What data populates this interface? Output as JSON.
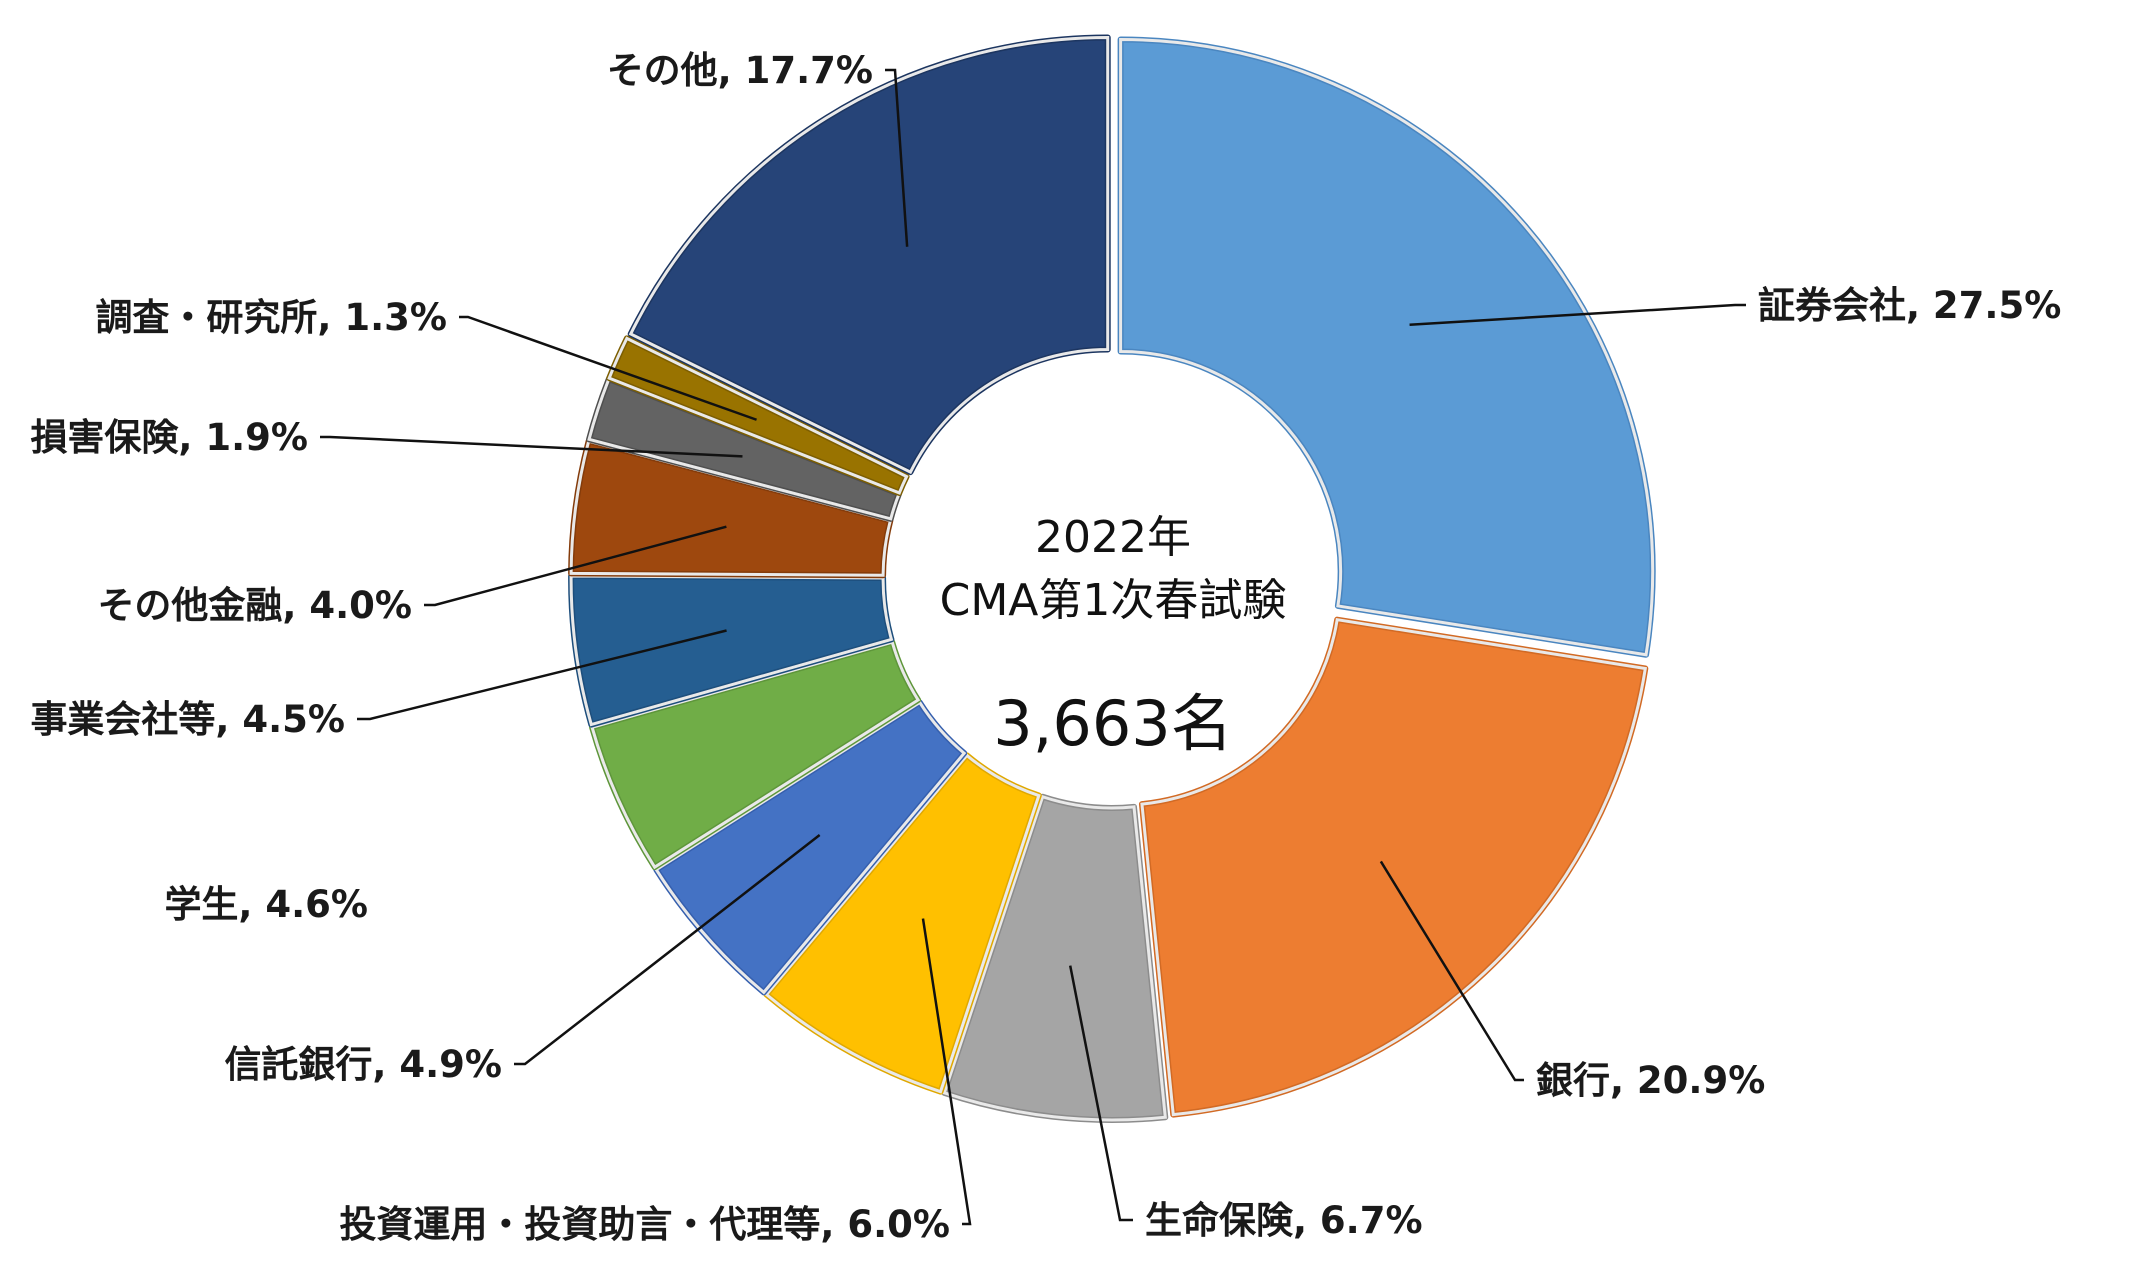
{
  "chart_data": {
    "type": "donut",
    "center": {
      "line1": "2022年",
      "line2": "CMA第1次春試験",
      "total": "3,663名"
    },
    "slices": [
      {
        "label": "証券会社",
        "pct_text": "27.5%",
        "value": 27.5,
        "color": "#5B9BD5",
        "dark": "#4A86C0"
      },
      {
        "label": "銀行",
        "pct_text": "20.9%",
        "value": 20.9,
        "color": "#ED7D31",
        "dark": "#D26A24"
      },
      {
        "label": "生命保険",
        "pct_text": "6.7%",
        "value": 6.7,
        "color": "#A5A5A5",
        "dark": "#8C8C8C"
      },
      {
        "label": "投資運用・投資助言・代理等",
        "pct_text": "6.0%",
        "value": 6.0,
        "color": "#FFC000",
        "dark": "#E0A800"
      },
      {
        "label": "信託銀行",
        "pct_text": "4.9%",
        "value": 4.9,
        "color": "#4472C4",
        "dark": "#355FAE"
      },
      {
        "label": "学生",
        "pct_text": "4.6%",
        "value": 4.6,
        "color": "#70AD47",
        "dark": "#5E963A"
      },
      {
        "label": "事業会社等",
        "pct_text": "4.5%",
        "value": 4.5,
        "color": "#255E91",
        "dark": "#1D4E7C"
      },
      {
        "label": "その他金融",
        "pct_text": "4.0%",
        "value": 4.0,
        "color": "#9E480E",
        "dark": "#843B0A"
      },
      {
        "label": "損害保険",
        "pct_text": "1.9%",
        "value": 1.9,
        "color": "#636363",
        "dark": "#4F4F4F"
      },
      {
        "label": "調査・研究所",
        "pct_text": "1.3%",
        "value": 1.3,
        "color": "#997300",
        "dark": "#7D5E00"
      },
      {
        "label": "その他",
        "pct_text": "17.7%",
        "value": 17.7,
        "color": "#264478",
        "dark": "#1C3560"
      }
    ]
  }
}
